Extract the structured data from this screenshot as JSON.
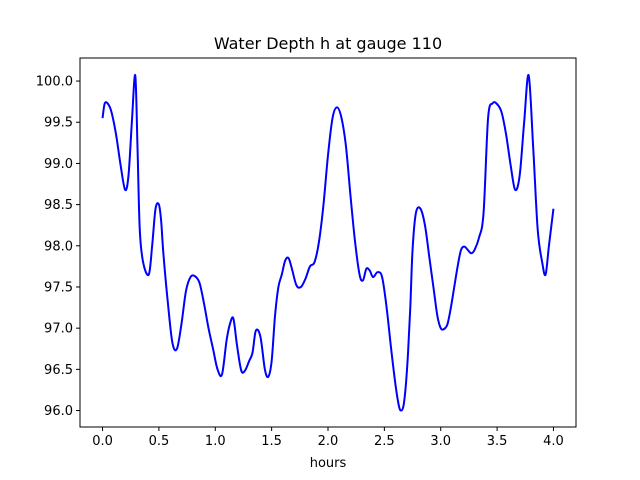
{
  "chart_data": {
    "type": "line",
    "title": "Water Depth h at gauge 110",
    "xlabel": "hours",
    "ylabel": "",
    "xlim": [
      -0.2,
      4.2
    ],
    "ylim": [
      95.8,
      100.28
    ],
    "xticks": [
      0.0,
      0.5,
      1.0,
      1.5,
      2.0,
      2.5,
      3.0,
      3.5,
      4.0
    ],
    "xtick_labels": [
      "0.0",
      "0.5",
      "1.0",
      "1.5",
      "2.0",
      "2.5",
      "3.0",
      "3.5",
      "4.0"
    ],
    "yticks": [
      96.0,
      96.5,
      97.0,
      97.5,
      98.0,
      98.5,
      99.0,
      99.5,
      100.0
    ],
    "ytick_labels": [
      "96.0",
      "96.5",
      "97.0",
      "97.5",
      "98.0",
      "98.5",
      "99.0",
      "99.5",
      "100.0"
    ],
    "grid": false,
    "series": [
      {
        "color": "#0000ff",
        "x": [
          0.0,
          0.02,
          0.05,
          0.08,
          0.12,
          0.16,
          0.2,
          0.23,
          0.26,
          0.29,
          0.31,
          0.33,
          0.36,
          0.41,
          0.44,
          0.47,
          0.5,
          0.52,
          0.54,
          0.58,
          0.62,
          0.66,
          0.7,
          0.74,
          0.78,
          0.82,
          0.86,
          0.9,
          0.94,
          0.98,
          1.02,
          1.06,
          1.1,
          1.13,
          1.16,
          1.19,
          1.22,
          1.24,
          1.27,
          1.3,
          1.33,
          1.36,
          1.4,
          1.44,
          1.47,
          1.5,
          1.53,
          1.56,
          1.59,
          1.62,
          1.65,
          1.68,
          1.72,
          1.76,
          1.8,
          1.84,
          1.88,
          1.92,
          1.96,
          2.0,
          2.04,
          2.08,
          2.12,
          2.16,
          2.2,
          2.24,
          2.28,
          2.31,
          2.34,
          2.37,
          2.4,
          2.44,
          2.48,
          2.52,
          2.56,
          2.6,
          2.63,
          2.65,
          2.67,
          2.69,
          2.71,
          2.73,
          2.75,
          2.78,
          2.82,
          2.86,
          2.9,
          2.94,
          2.97,
          3.0,
          3.03,
          3.06,
          3.09,
          3.12,
          3.15,
          3.18,
          3.21,
          3.24,
          3.27,
          3.3,
          3.34,
          3.38,
          3.42,
          3.46,
          3.5,
          3.54,
          3.58,
          3.62,
          3.66,
          3.7,
          3.74,
          3.78,
          3.82,
          3.86,
          3.9,
          3.93,
          3.96,
          4.0
        ],
        "y": [
          99.55,
          99.73,
          99.72,
          99.62,
          99.35,
          98.98,
          98.68,
          98.85,
          99.5,
          100.07,
          99.2,
          98.2,
          97.8,
          97.65,
          98.0,
          98.45,
          98.5,
          98.3,
          97.9,
          97.3,
          96.82,
          96.75,
          97.05,
          97.45,
          97.62,
          97.63,
          97.55,
          97.3,
          97.0,
          96.75,
          96.5,
          96.44,
          96.85,
          97.05,
          97.12,
          96.82,
          96.55,
          96.46,
          96.5,
          96.6,
          96.7,
          96.97,
          96.9,
          96.5,
          96.41,
          96.6,
          97.15,
          97.5,
          97.65,
          97.82,
          97.85,
          97.72,
          97.52,
          97.5,
          97.6,
          97.75,
          97.8,
          98.05,
          98.5,
          99.1,
          99.55,
          99.68,
          99.55,
          99.2,
          98.6,
          98.05,
          97.65,
          97.58,
          97.72,
          97.7,
          97.62,
          97.68,
          97.62,
          97.25,
          96.75,
          96.3,
          96.05,
          96.0,
          96.06,
          96.3,
          96.7,
          97.25,
          97.95,
          98.4,
          98.45,
          98.25,
          97.85,
          97.45,
          97.15,
          97.0,
          96.99,
          97.05,
          97.25,
          97.5,
          97.75,
          97.95,
          97.99,
          97.95,
          97.91,
          97.95,
          98.1,
          98.4,
          99.55,
          99.73,
          99.72,
          99.62,
          99.35,
          98.98,
          98.68,
          98.85,
          99.5,
          100.07,
          99.2,
          98.2,
          97.8,
          97.65,
          98.0,
          98.45
        ]
      }
    ]
  }
}
